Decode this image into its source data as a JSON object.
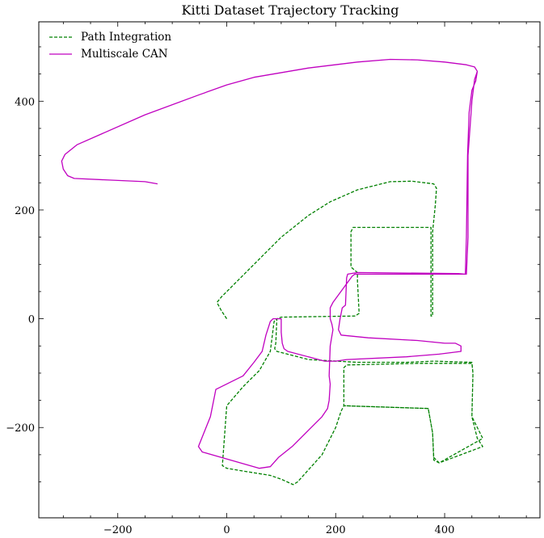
{
  "chart_data": {
    "type": "line",
    "title": "Kitti Dataset Trajectory Tracking",
    "xlabel": "",
    "ylabel": "",
    "xlim": [
      -345,
      575
    ],
    "ylim": [
      -366,
      546
    ],
    "x_ticks": [
      -200,
      0,
      200,
      400
    ],
    "y_ticks": [
      -200,
      0,
      200,
      400
    ],
    "x_tick_labels": [
      "−200",
      "0",
      "200",
      "400"
    ],
    "y_tick_labels": [
      "−200",
      "0",
      "200",
      "400"
    ],
    "grid": false,
    "legend_position": "upper-left",
    "series": [
      {
        "name": "Path Integration",
        "color": "#008000",
        "style": "dashed",
        "points": [
          [
            0,
            0
          ],
          [
            -10,
            15
          ],
          [
            -18,
            30
          ],
          [
            -10,
            40
          ],
          [
            40,
            90
          ],
          [
            100,
            150
          ],
          [
            150,
            190
          ],
          [
            190,
            215
          ],
          [
            240,
            237
          ],
          [
            300,
            252
          ],
          [
            340,
            253
          ],
          [
            380,
            248
          ],
          [
            385,
            240
          ],
          [
            383,
            210
          ],
          [
            378,
            160
          ],
          [
            378,
            5
          ],
          [
            375,
            5
          ],
          [
            375,
            168
          ],
          [
            232,
            168
          ],
          [
            228,
            160
          ],
          [
            228,
            95
          ],
          [
            240,
            85
          ],
          [
            240,
            70
          ],
          [
            243,
            10
          ],
          [
            236,
            5
          ],
          [
            100,
            3
          ],
          [
            92,
            0
          ],
          [
            90,
            -45
          ],
          [
            88,
            -55
          ],
          [
            92,
            -60
          ],
          [
            150,
            -75
          ],
          [
            240,
            -80
          ],
          [
            330,
            -80
          ],
          [
            380,
            -78
          ],
          [
            450,
            -80
          ],
          [
            452,
            -100
          ],
          [
            450,
            -180
          ],
          [
            460,
            -220
          ],
          [
            470,
            -235
          ],
          [
            390,
            -265
          ],
          [
            380,
            -255
          ],
          [
            378,
            -210
          ],
          [
            370,
            -165
          ],
          [
            215,
            -160
          ],
          [
            215,
            -90
          ],
          [
            220,
            -85
          ],
          [
            350,
            -82
          ],
          [
            450,
            -82
          ],
          [
            452,
            -100
          ],
          [
            450,
            -180
          ],
          [
            470,
            -220
          ],
          [
            390,
            -265
          ],
          [
            380,
            -260
          ],
          [
            378,
            -210
          ],
          [
            370,
            -165
          ],
          [
            215,
            -160
          ],
          [
            210,
            -170
          ],
          [
            200,
            -200
          ],
          [
            175,
            -250
          ],
          [
            130,
            -300
          ],
          [
            122,
            -305
          ],
          [
            100,
            -295
          ],
          [
            80,
            -288
          ],
          [
            30,
            -280
          ],
          [
            0,
            -275
          ],
          [
            -8,
            -270
          ],
          [
            0,
            -160
          ],
          [
            30,
            -125
          ],
          [
            60,
            -95
          ],
          [
            80,
            -60
          ],
          [
            85,
            -20
          ],
          [
            87,
            -5
          ],
          [
            92,
            0
          ]
        ]
      },
      {
        "name": "Multiscale CAN",
        "color": "#c000c0",
        "style": "solid",
        "points": [
          [
            -127,
            248
          ],
          [
            -150,
            252
          ],
          [
            -280,
            258
          ],
          [
            -292,
            263
          ],
          [
            -300,
            275
          ],
          [
            -303,
            290
          ],
          [
            -297,
            302
          ],
          [
            -275,
            320
          ],
          [
            -150,
            375
          ],
          [
            -50,
            412
          ],
          [
            0,
            430
          ],
          [
            50,
            444
          ],
          [
            150,
            461
          ],
          [
            240,
            472
          ],
          [
            300,
            477
          ],
          [
            350,
            476
          ],
          [
            400,
            472
          ],
          [
            440,
            467
          ],
          [
            455,
            463
          ],
          [
            460,
            455
          ],
          [
            457,
            437
          ],
          [
            450,
            420
          ],
          [
            445,
            380
          ],
          [
            442,
            300
          ],
          [
            440,
            150
          ],
          [
            438,
            82
          ],
          [
            425,
            83
          ],
          [
            240,
            85
          ],
          [
            222,
            82
          ],
          [
            220,
            75
          ],
          [
            218,
            25
          ],
          [
            212,
            20
          ],
          [
            208,
            0
          ],
          [
            205,
            -20
          ],
          [
            210,
            -30
          ],
          [
            260,
            -35
          ],
          [
            350,
            -40
          ],
          [
            400,
            -45
          ],
          [
            420,
            -45
          ],
          [
            430,
            -50
          ],
          [
            430,
            -60
          ],
          [
            390,
            -65
          ],
          [
            330,
            -70
          ],
          [
            220,
            -75
          ],
          [
            200,
            -78
          ],
          [
            180,
            -78
          ],
          [
            112,
            -60
          ],
          [
            105,
            -55
          ],
          [
            102,
            -45
          ],
          [
            100,
            -25
          ],
          [
            100,
            0
          ],
          [
            85,
            0
          ],
          [
            80,
            -5
          ],
          [
            72,
            -30
          ],
          [
            65,
            -60
          ],
          [
            50,
            -80
          ],
          [
            30,
            -105
          ],
          [
            -20,
            -130
          ],
          [
            -22,
            -140
          ],
          [
            -30,
            -180
          ],
          [
            -52,
            -235
          ],
          [
            -45,
            -245
          ],
          [
            -10,
            -255
          ],
          [
            60,
            -275
          ],
          [
            80,
            -272
          ],
          [
            95,
            -255
          ],
          [
            120,
            -235
          ],
          [
            150,
            -205
          ],
          [
            175,
            -180
          ],
          [
            185,
            -165
          ],
          [
            188,
            -150
          ],
          [
            190,
            -120
          ],
          [
            188,
            -105
          ],
          [
            190,
            -50
          ],
          [
            195,
            -20
          ],
          [
            193,
            -10
          ],
          [
            190,
            0
          ],
          [
            190,
            20
          ],
          [
            195,
            30
          ],
          [
            230,
            78
          ],
          [
            235,
            82
          ],
          [
            440,
            82
          ],
          [
            443,
            150
          ],
          [
            443,
            300
          ],
          [
            450,
            400
          ],
          [
            455,
            440
          ],
          [
            460,
            455
          ]
        ]
      }
    ]
  }
}
